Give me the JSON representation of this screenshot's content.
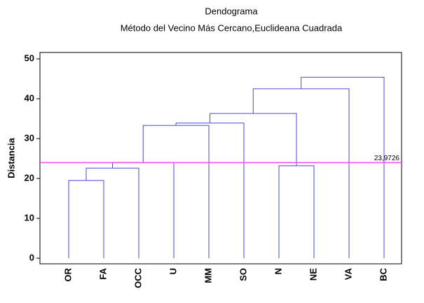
{
  "chart_data": {
    "type": "dendrogram",
    "title": "Dendograma",
    "subtitle": "Método del Vecino Más Cercano,Euclideana Cuadrada",
    "y_label": "Distancia",
    "categories": [
      "OR",
      "FA",
      "OCC",
      "U",
      "MM",
      "SO",
      "N",
      "NE",
      "VA",
      "BC"
    ],
    "merges": [
      {
        "left": 0,
        "right": 1,
        "height": 19.5
      },
      {
        "left": 10,
        "right": 2,
        "height": 22.6
      },
      {
        "left": 11,
        "right": 3,
        "height": 24.0
      },
      {
        "left": 12,
        "right": 4,
        "height": 33.3
      },
      {
        "left": 13,
        "right": 5,
        "height": 33.9
      },
      {
        "left": 6,
        "right": 7,
        "height": 23.2
      },
      {
        "left": 14,
        "right": 15,
        "height": 36.3
      },
      {
        "left": 16,
        "right": 8,
        "height": 42.5
      },
      {
        "left": 17,
        "right": 9,
        "height": 45.4
      }
    ],
    "color": "#4848d8",
    "cutoff": {
      "value": 23.9726,
      "label": "23,9726",
      "color": "#ff44ff"
    },
    "ylim": [
      -1.4,
      51.6
    ],
    "yticks": [
      0,
      10,
      20,
      30,
      40,
      50
    ]
  }
}
